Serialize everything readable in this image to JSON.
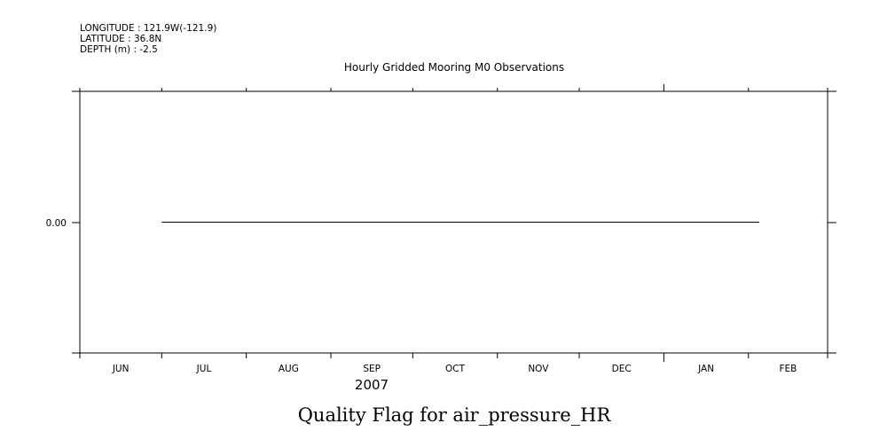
{
  "header": {
    "lines": [
      "LONGITUDE : 121.9W(-121.9)",
      "LATITUDE : 36.8N",
      "DEPTH (m) : -2.5"
    ]
  },
  "chart_data": {
    "type": "line",
    "title": "Hourly Gridded Mooring M0 Observations",
    "xlabel": "Quality Flag for air_pressure_HR",
    "year_label": "2007",
    "x_ticks": [
      "JUN",
      "JUL",
      "AUG",
      "SEP",
      "OCT",
      "NOV",
      "DEC",
      "JAN",
      "FEB"
    ],
    "y_ticks": [
      "0.00"
    ],
    "ylim": [
      -1,
      1
    ],
    "xlim": [
      "2007-06",
      "2008-03"
    ],
    "series": [
      {
        "x_start": "2007-07-01",
        "x_end": "2008-02-05",
        "y": 0
      }
    ],
    "grid": false,
    "line_color": "#000000"
  }
}
